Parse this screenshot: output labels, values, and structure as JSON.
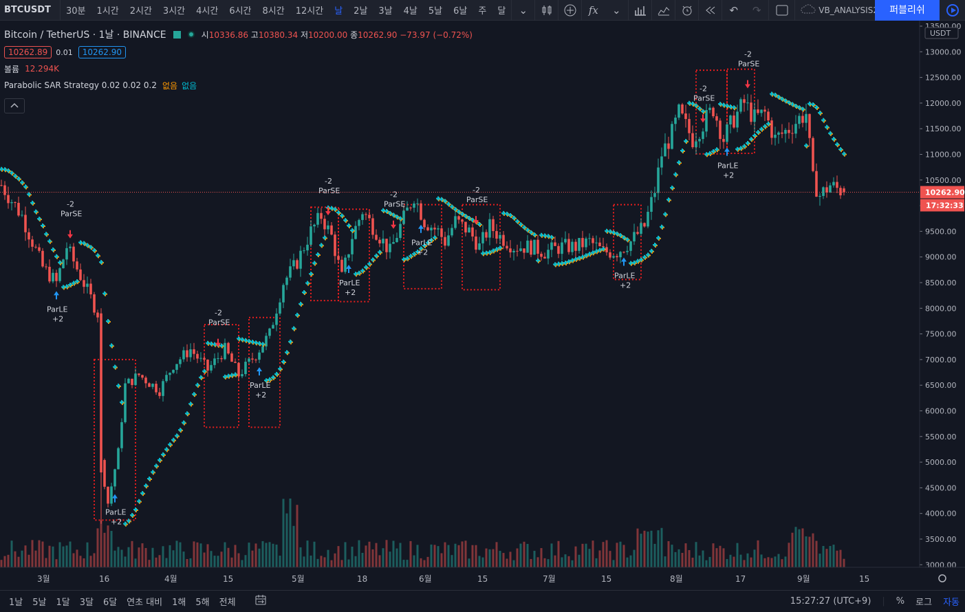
{
  "toolbar": {
    "symbol": "BTCUSDT",
    "intervals": [
      "30분",
      "1시간",
      "2시간",
      "3시간",
      "4시간",
      "6시간",
      "8시간",
      "12시간",
      "날",
      "2날",
      "3날",
      "4날",
      "5날",
      "6날",
      "주",
      "달"
    ],
    "active_interval": "날",
    "layout_name": "VB_ANALYSIS2",
    "publish_label": "퍼블리쉬",
    "icons": [
      "chevron-down-icon",
      "candles-icon",
      "plus-circle-icon",
      "fx-icon",
      "chevron-down-icon",
      "bars-icon",
      "templates-icon",
      "alert-icon",
      "replay-icon",
      "undo-icon",
      "redo-icon",
      "fullscreen-icon",
      "cloud-icon",
      "play-icon"
    ]
  },
  "legend": {
    "title": "Bitcoin / TetherUS · 1날 · BINANCE",
    "ohlc": {
      "o_label": "시",
      "o": "10336.86",
      "h_label": "고",
      "h": "10380.34",
      "l_label": "저",
      "l": "10200.00",
      "c_label": "종",
      "c": "10262.90",
      "change": "−73.97 (−0.72%)"
    },
    "sell_price": "10262.89",
    "spread": "0.01",
    "buy_price": "10262.90",
    "volume_label": "볼륨",
    "volume_value": "12.294K",
    "indicator": "Parabolic SAR Strategy 0.02 0.02 0.2",
    "indicator_v1": "없음",
    "indicator_v2": "없음",
    "collapse_icon": "chevron-up-icon"
  },
  "price_axis": {
    "currency": "USDT",
    "current_price": "10262.90",
    "countdown": "17:32:33"
  },
  "bottom": {
    "ranges": [
      "1날",
      "5날",
      "1달",
      "3달",
      "6달",
      "연초 대비",
      "1해",
      "5해",
      "전체"
    ],
    "time": "15:27:27 (UTC+9)",
    "percent_label": "%",
    "log_label": "로그",
    "auto_label": "자동",
    "calendar_icon": "calendar-range-icon"
  },
  "colors": {
    "up": "#26a69a",
    "down": "#ef5350",
    "sar_orange": "#ff9800",
    "sar_cyan": "#00bcd4",
    "signal_up": "#2196f3",
    "signal_down": "#f23645",
    "box": "#e91e1e",
    "accent": "#2962ff"
  },
  "chart_data": {
    "type": "candlestick",
    "x_ticks": [
      "3월",
      "16",
      "4월",
      "15",
      "5월",
      "18",
      "6월",
      "15",
      "7월",
      "15",
      "8월",
      "17",
      "9월",
      "15"
    ],
    "y_ticks": [
      3000,
      3500,
      4000,
      4500,
      5000,
      5500,
      6000,
      6500,
      7000,
      7500,
      8000,
      8500,
      9000,
      9500,
      10000,
      10500,
      11000,
      11500,
      12000,
      12500,
      13000,
      13500
    ],
    "ylim": [
      2950,
      13500
    ],
    "current_price": 10262.9,
    "key_points": [
      [
        0,
        10400
      ],
      [
        6,
        9800
      ],
      [
        12,
        8800
      ],
      [
        16,
        8500
      ],
      [
        19,
        9200
      ],
      [
        26,
        8200
      ],
      [
        28,
        7900
      ],
      [
        29,
        5000
      ],
      [
        31,
        4200
      ],
      [
        34,
        5200
      ],
      [
        36,
        6500
      ],
      [
        40,
        6700
      ],
      [
        46,
        6400
      ],
      [
        50,
        6900
      ],
      [
        55,
        7200
      ],
      [
        60,
        6800
      ],
      [
        65,
        7200
      ],
      [
        69,
        6700
      ],
      [
        74,
        7100
      ],
      [
        78,
        7500
      ],
      [
        82,
        8500
      ],
      [
        86,
        8900
      ],
      [
        90,
        9500
      ],
      [
        93,
        9800
      ],
      [
        96,
        9400
      ],
      [
        99,
        8600
      ],
      [
        102,
        9400
      ],
      [
        105,
        9900
      ],
      [
        109,
        9500
      ],
      [
        113,
        9100
      ],
      [
        116,
        9600
      ],
      [
        120,
        10200
      ],
      [
        123,
        9700
      ],
      [
        127,
        9500
      ],
      [
        129,
        9300
      ],
      [
        132,
        9700
      ],
      [
        136,
        9500
      ],
      [
        139,
        9200
      ],
      [
        142,
        9600
      ],
      [
        145,
        9400
      ],
      [
        149,
        9200
      ],
      [
        154,
        9200
      ],
      [
        158,
        9100
      ],
      [
        163,
        9200
      ],
      [
        167,
        9200
      ],
      [
        171,
        9300
      ],
      [
        175,
        9100
      ],
      [
        179,
        9100
      ],
      [
        183,
        9300
      ],
      [
        187,
        9600
      ],
      [
        190,
        10300
      ],
      [
        192,
        11000
      ],
      [
        195,
        11400
      ],
      [
        197,
        11800
      ],
      [
        201,
        11300
      ],
      [
        204,
        11600
      ],
      [
        207,
        11900
      ],
      [
        210,
        11300
      ],
      [
        213,
        11700
      ],
      [
        216,
        12000
      ],
      [
        219,
        11700
      ],
      [
        222,
        11800
      ],
      [
        225,
        11300
      ],
      [
        229,
        11500
      ],
      [
        232,
        11700
      ],
      [
        234,
        11800
      ],
      [
        236,
        10500
      ],
      [
        238,
        10200
      ],
      [
        241,
        10400
      ],
      [
        245,
        10262.9
      ]
    ],
    "volume": {
      "peak_index": 84,
      "unit": "relative"
    },
    "signals": [
      {
        "type": "ParLE",
        "qty": "+2",
        "index": 16
      },
      {
        "type": "ParSE",
        "qty": "-2",
        "index": 20
      },
      {
        "type": "ParLE",
        "qty": "+2",
        "index": 33
      },
      {
        "type": "ParSE",
        "qty": "-2",
        "index": 63
      },
      {
        "type": "ParLE",
        "qty": "+2",
        "index": 75
      },
      {
        "type": "ParSE",
        "qty": "-2",
        "index": 95
      },
      {
        "type": "ParLE",
        "qty": "+2",
        "index": 101
      },
      {
        "type": "ParSE",
        "qty": "-2",
        "index": 114
      },
      {
        "type": "ParLE",
        "qty": "+2",
        "index": 122
      },
      {
        "type": "ParSE",
        "qty": "-2",
        "index": 138
      },
      {
        "type": "ParLE",
        "qty": "+2",
        "index": 181
      },
      {
        "type": "ParSE",
        "qty": "-2",
        "index": 204
      },
      {
        "type": "ParLE",
        "qty": "+2",
        "index": 211
      },
      {
        "type": "ParSE",
        "qty": "-2",
        "index": 217
      }
    ],
    "highlight_boxes": [
      {
        "from": 27,
        "to": 39,
        "lo": 3870,
        "hi": 7000
      },
      {
        "from": 59,
        "to": 69,
        "lo": 5680,
        "hi": 7680
      },
      {
        "from": 72,
        "to": 81,
        "lo": 5680,
        "hi": 7820
      },
      {
        "from": 90,
        "to": 98,
        "lo": 8150,
        "hi": 9970
      },
      {
        "from": 98,
        "to": 107,
        "lo": 8130,
        "hi": 9930
      },
      {
        "from": 117,
        "to": 128,
        "lo": 8380,
        "hi": 10020
      },
      {
        "from": 134,
        "to": 145,
        "lo": 8360,
        "hi": 10020
      },
      {
        "from": 178,
        "to": 186,
        "lo": 8560,
        "hi": 10020
      },
      {
        "from": 202,
        "to": 211,
        "lo": 11010,
        "hi": 12640
      },
      {
        "from": 211,
        "to": 219,
        "lo": 11020,
        "hi": 12660
      }
    ]
  }
}
